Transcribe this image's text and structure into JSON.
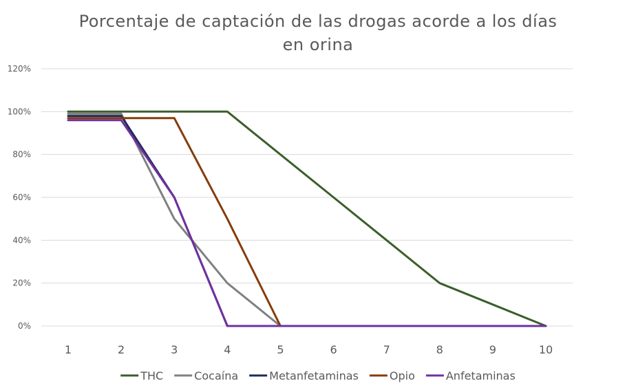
{
  "chart_data": {
    "type": "line",
    "title_lines": [
      "Porcentaje de captación de las drogas acorde a los días",
      "en orina"
    ],
    "xlabel": "",
    "ylabel": "",
    "x": [
      1,
      2,
      3,
      4,
      5,
      6,
      7,
      8,
      9,
      10
    ],
    "y_ticks": [
      "0%",
      "20%",
      "40%",
      "60%",
      "80%",
      "100%",
      "120%"
    ],
    "ylim": [
      0,
      1.2
    ],
    "grid": true,
    "legend_position": "bottom",
    "series": [
      {
        "name": "THC",
        "color": "#3b5e2b",
        "x": [
          1,
          2,
          3,
          4,
          5,
          6,
          7,
          8,
          9,
          10
        ],
        "values": [
          1.0,
          1.0,
          1.0,
          1.0,
          0.8,
          0.6,
          0.4,
          0.2,
          0.1,
          0.0
        ]
      },
      {
        "name": "Cocaína",
        "color": "#808080",
        "x": [
          1,
          2,
          3,
          4,
          5
        ],
        "values": [
          0.99,
          0.99,
          0.5,
          0.2,
          0.0
        ]
      },
      {
        "name": "Metanfetaminas",
        "color": "#1f2a5a",
        "x": [
          1,
          2,
          3,
          4
        ],
        "values": [
          0.98,
          0.98,
          0.6,
          0.0
        ]
      },
      {
        "name": "Opio",
        "color": "#843c0c",
        "x": [
          1,
          2,
          3,
          4,
          5
        ],
        "values": [
          0.97,
          0.97,
          0.97,
          0.5,
          0.0
        ]
      },
      {
        "name": "Anfetaminas",
        "color": "#7030a0",
        "x": [
          1,
          2,
          3,
          4,
          5,
          6,
          7,
          8,
          9,
          10
        ],
        "values": [
          0.96,
          0.96,
          0.6,
          0.0,
          0.0,
          0.0,
          0.0,
          0.0,
          0.0,
          0.0
        ]
      }
    ]
  }
}
